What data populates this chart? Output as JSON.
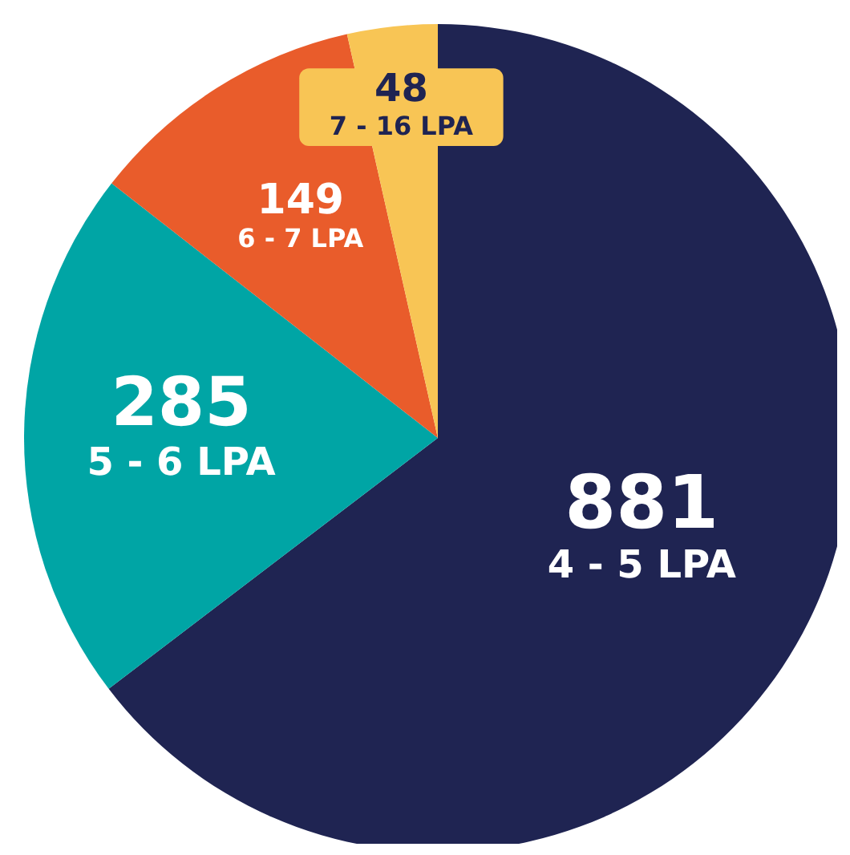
{
  "chart_data": {
    "type": "pie",
    "categories": [
      "4 - 5 LPA",
      "5 - 6 LPA",
      "6 - 7 LPA",
      "7 - 16 LPA"
    ],
    "values": [
      881,
      285,
      149,
      48
    ],
    "colors": [
      "#1f2452",
      "#00a5a5",
      "#e95c2b",
      "#f8c555"
    ],
    "data_labels": true
  }
}
